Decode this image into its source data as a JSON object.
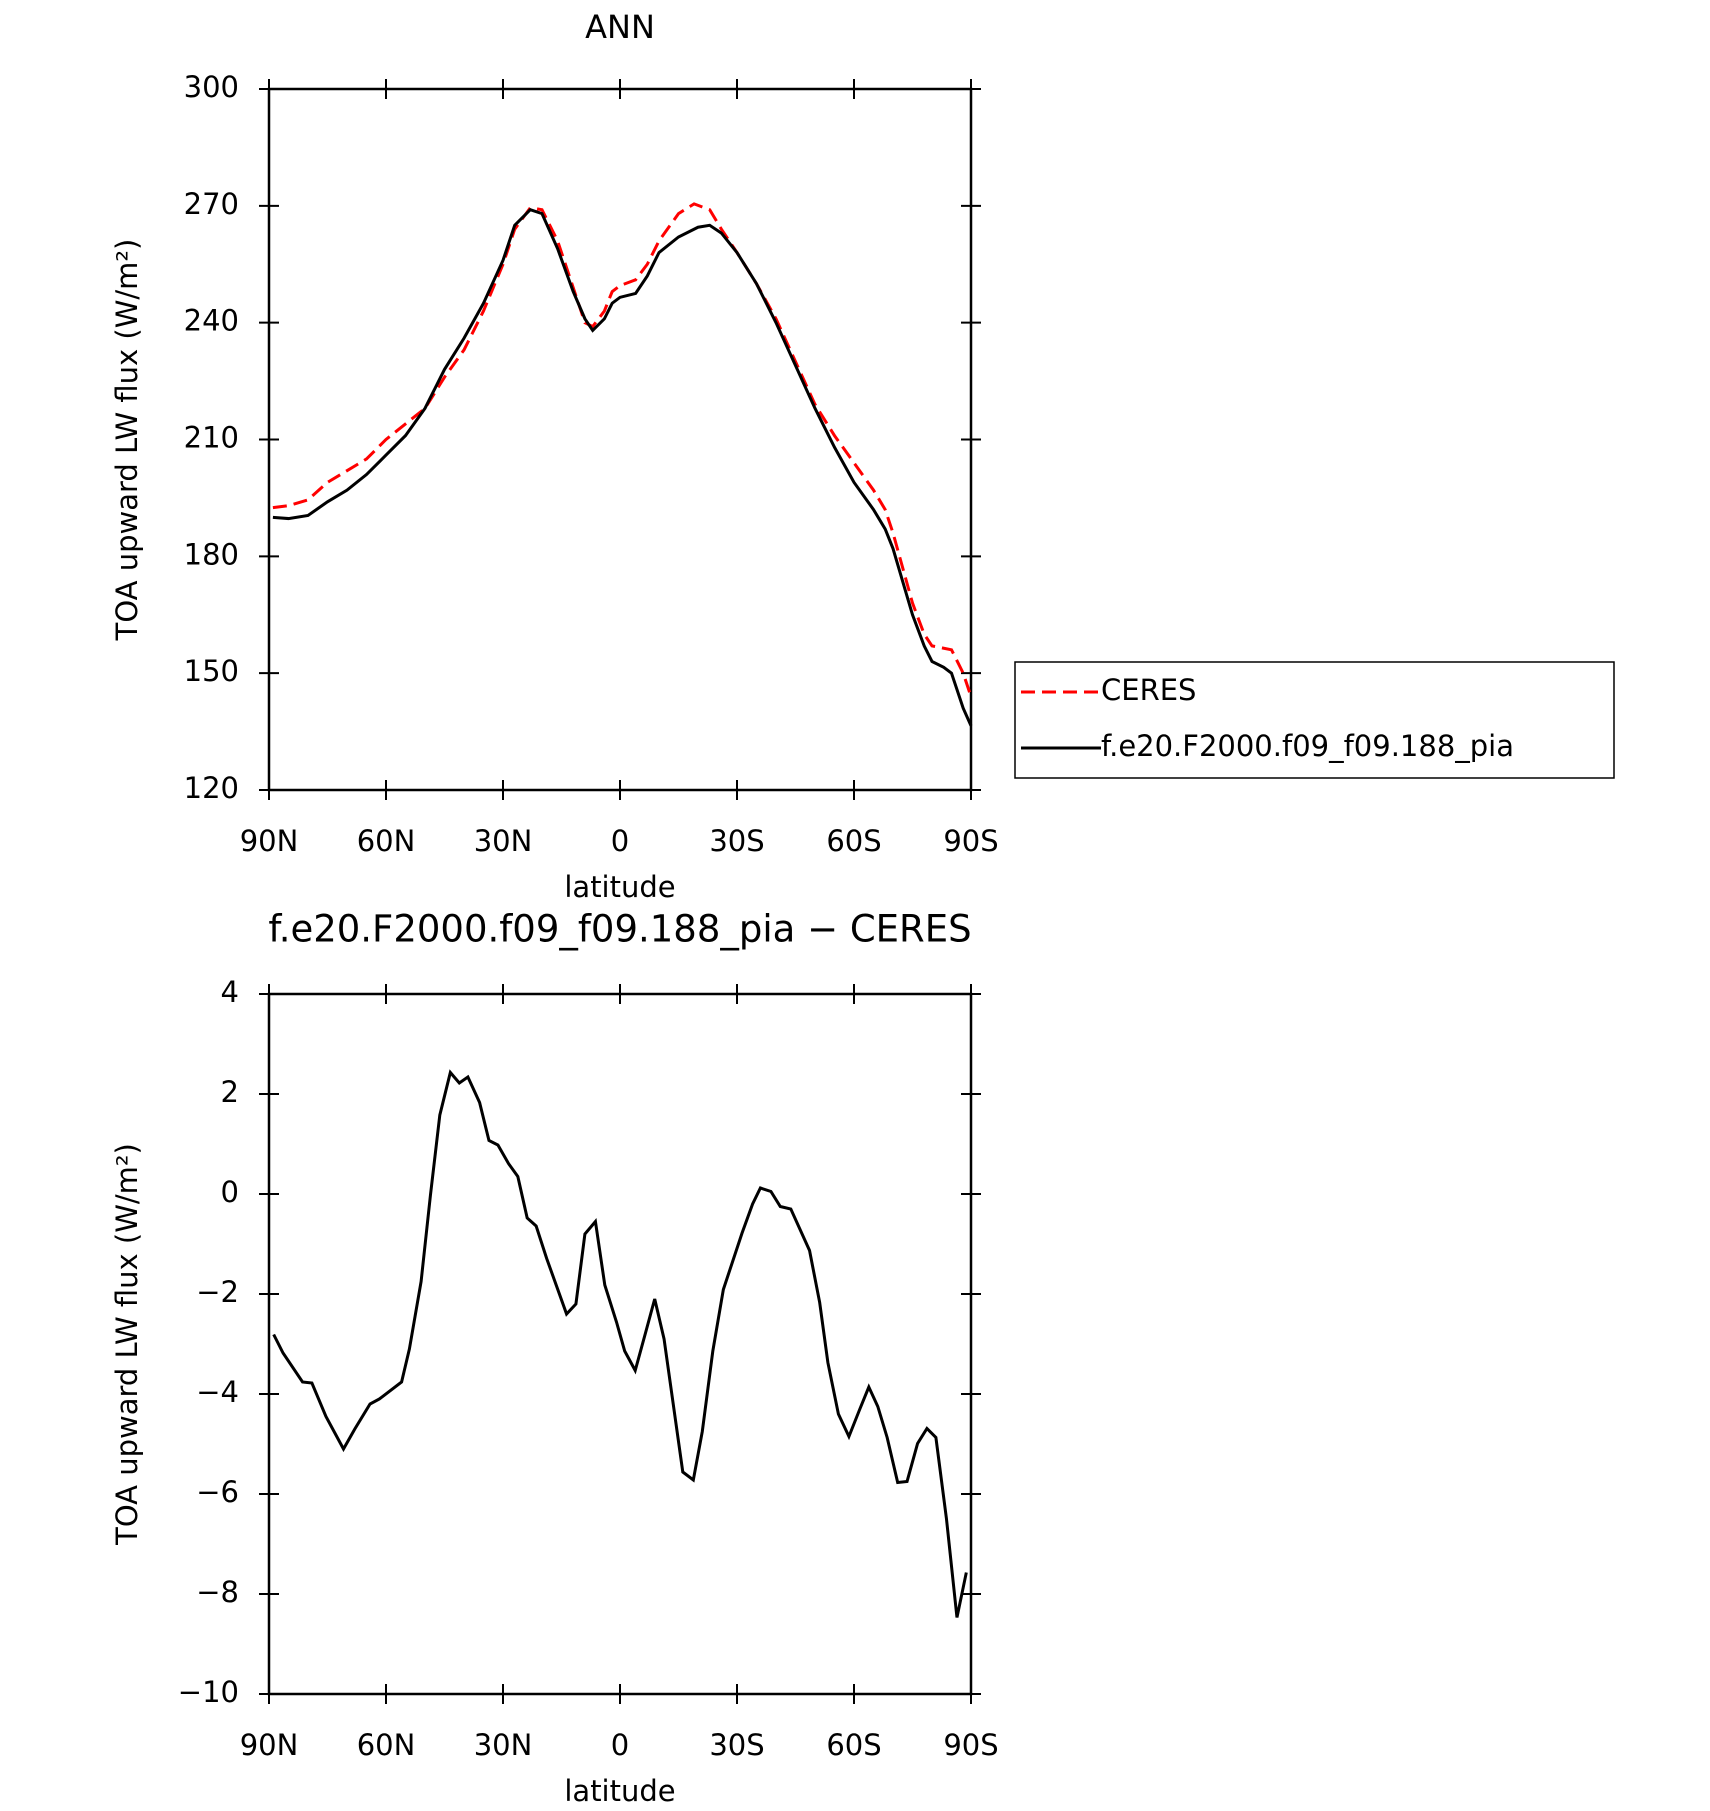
{
  "chart_data": [
    {
      "type": "line",
      "title": "ANN",
      "x_label": "latitude",
      "y_label": "TOA upward LW flux (W/m²)",
      "xlim": [
        90,
        -90
      ],
      "xticks": [
        {
          "value": 90,
          "label": "90N"
        },
        {
          "value": 60,
          "label": "60N"
        },
        {
          "value": 30,
          "label": "30N"
        },
        0,
        {
          "value": -30,
          "label": "30S"
        },
        {
          "value": -60,
          "label": "60S"
        },
        {
          "value": -90,
          "label": "90S"
        }
      ],
      "ylim": [
        120,
        300
      ],
      "yticks": [
        120,
        150,
        180,
        210,
        240,
        270,
        300
      ],
      "legend": "right",
      "series": [
        {
          "name": "CERES",
          "color": "#ff0000",
          "dashed": true,
          "x": [
            89,
            85,
            80,
            75,
            70,
            65,
            60,
            55,
            50,
            45,
            40,
            35,
            30,
            27,
            23,
            20,
            16,
            12,
            9,
            7,
            4,
            2,
            0,
            -4,
            -7,
            -10,
            -15,
            -19,
            -23,
            -26,
            -30,
            -35,
            -40,
            -45,
            -50,
            -55,
            -60,
            -65,
            -68,
            -70,
            -75,
            -78,
            -80,
            -85,
            -88,
            -90
          ],
          "values": [
            192.5,
            193,
            194.5,
            199,
            202,
            205,
            210,
            214,
            218,
            226,
            233,
            243,
            255,
            264,
            269.5,
            269,
            261,
            249,
            240,
            239,
            243,
            248,
            249.5,
            251,
            255,
            261,
            268,
            270.5,
            269,
            264,
            258,
            250,
            241,
            230,
            219,
            211,
            204,
            197,
            192,
            186,
            168,
            160,
            157,
            156,
            150,
            144
          ]
        },
        {
          "name": "f.e20.F2000.f09_f09.188_pia",
          "color": "#000000",
          "dashed": false,
          "x": [
            89,
            85,
            80,
            75,
            70,
            65,
            60,
            55,
            50,
            45,
            40,
            35,
            30,
            27,
            23,
            20,
            16,
            12,
            9,
            7,
            4,
            2,
            0,
            -4,
            -7,
            -10,
            -15,
            -20,
            -23,
            -26,
            -30,
            -35,
            -40,
            -45,
            -50,
            -55,
            -60,
            -65,
            -68,
            -70,
            -75,
            -78,
            -80,
            -83,
            -85,
            -88,
            -90
          ],
          "values": [
            190,
            189.7,
            190.5,
            194,
            197,
            201,
            206,
            211,
            218,
            228,
            236,
            245,
            256,
            265,
            269,
            268,
            259,
            248,
            241,
            238,
            241,
            245,
            246.5,
            247.5,
            252,
            258,
            262,
            264.5,
            265,
            263,
            258,
            250,
            240,
            229,
            218,
            208,
            199,
            192,
            187,
            182,
            165,
            157,
            153,
            151.5,
            150,
            141,
            136.5
          ]
        }
      ]
    },
    {
      "type": "line",
      "title": "f.e20.F2000.f09_f09.188_pia − CERES",
      "x_label": "latitude",
      "y_label": "TOA upward LW flux (W/m²)",
      "xlim": [
        90,
        -90
      ],
      "xticks": [
        {
          "value": 90,
          "label": "90N"
        },
        {
          "value": 60,
          "label": "60N"
        },
        {
          "value": 30,
          "label": "30N"
        },
        0,
        {
          "value": -30,
          "label": "30S"
        },
        {
          "value": -60,
          "label": "60S"
        },
        {
          "value": -90,
          "label": "90S"
        }
      ],
      "ylim": [
        -10,
        4
      ],
      "yticks": [
        {
          "value": -10,
          "label": "−10"
        },
        {
          "value": -8,
          "label": "−8"
        },
        {
          "value": -6,
          "label": "−6"
        },
        {
          "value": -4,
          "label": "−4"
        },
        {
          "value": -2,
          "label": "−2"
        },
        0,
        2,
        4
      ],
      "series": [
        {
          "color": "#000000",
          "dashed": false,
          "x": [
            88.8,
            86.4,
            81.4,
            79,
            75.4,
            70.9,
            68,
            64.1,
            61.7,
            56,
            54,
            51,
            48.6,
            46.2,
            43.5,
            41.2,
            39,
            36,
            33.6,
            31.3,
            28.6,
            26.2,
            23.8,
            21.5,
            18.8,
            13.7,
            11.3,
            9,
            6.3,
            3.9,
            0.9,
            -1.2,
            -3.9,
            -6.5,
            -8.9,
            -11.3,
            -16.1,
            -18.8,
            -21.1,
            -23.8,
            -26.5,
            -31.3,
            -34,
            -36,
            -38.7,
            -41.1,
            -43.8,
            -48.6,
            -51.2,
            -53.3,
            -56,
            -58.7,
            -61.4,
            -63.8,
            -66.1,
            -68.5,
            -71.2,
            -73.6,
            -76.3,
            -78.7,
            -81,
            -83.7,
            -86.4,
            -88.8
          ],
          "values": [
            -2.81,
            -3.18,
            -3.76,
            -3.78,
            -4.45,
            -5.1,
            -4.7,
            -4.2,
            -4.1,
            -3.76,
            -3.1,
            -1.75,
            -0.02,
            1.58,
            2.43,
            2.22,
            2.34,
            1.83,
            1.07,
            0.98,
            0.61,
            0.35,
            -0.48,
            -0.64,
            -1.29,
            -2.4,
            -2.2,
            -0.8,
            -0.55,
            -1.82,
            -2.56,
            -3.14,
            -3.53,
            -2.79,
            -2.1,
            -2.9,
            -5.56,
            -5.72,
            -4.75,
            -3.14,
            -1.91,
            -0.78,
            -0.2,
            0.12,
            0.05,
            -0.25,
            -0.3,
            -1.13,
            -2.17,
            -3.37,
            -4.4,
            -4.85,
            -4.32,
            -3.86,
            -4.25,
            -4.87,
            -5.77,
            -5.75,
            -4.99,
            -4.69,
            -4.87,
            -6.49,
            -8.47,
            -7.57
          ]
        }
      ]
    }
  ]
}
